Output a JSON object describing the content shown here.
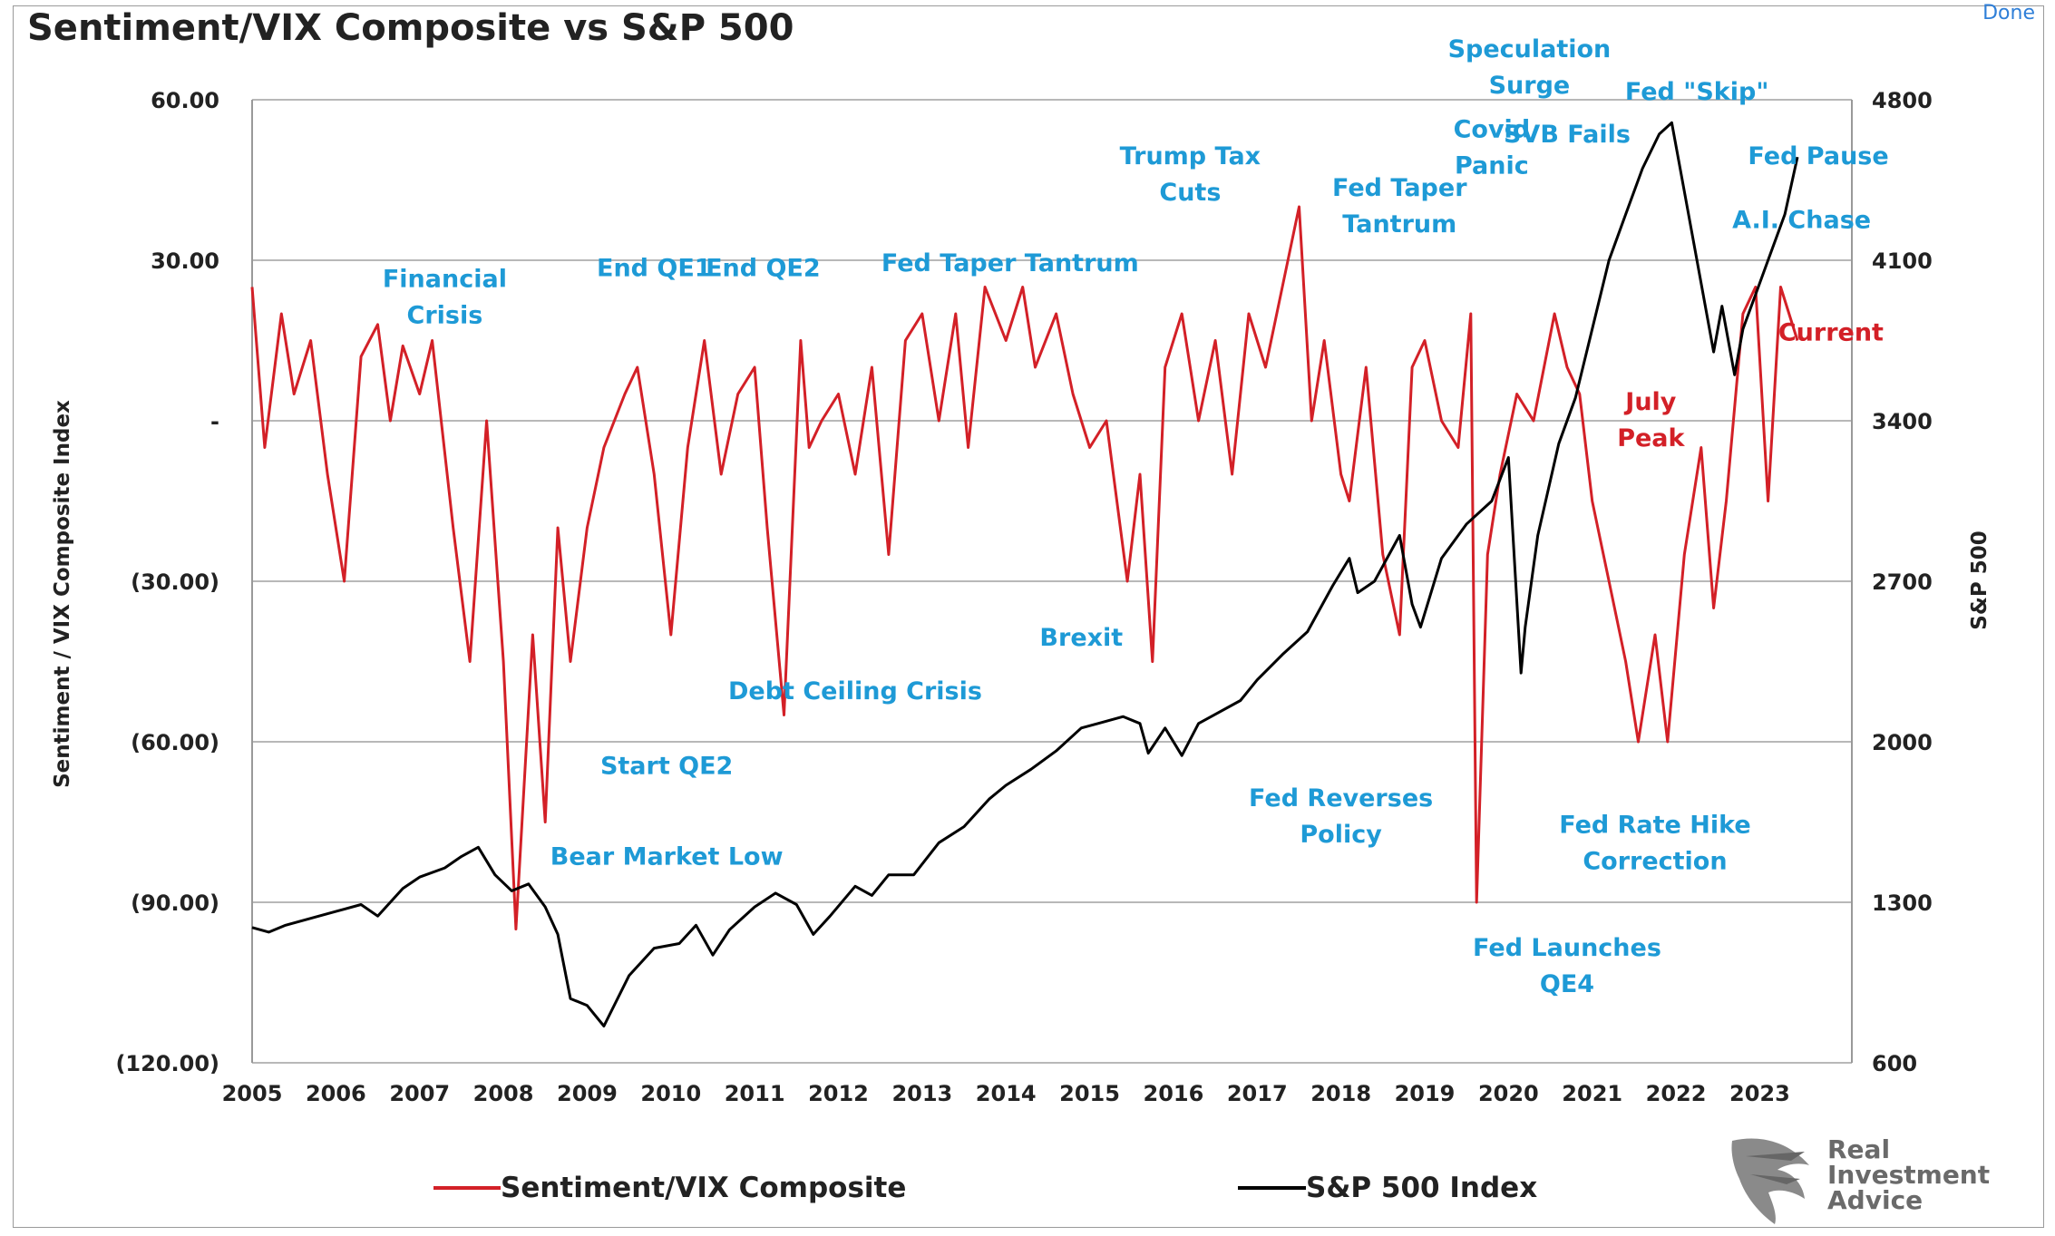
{
  "window": {
    "done_label": "Done"
  },
  "colors": {
    "sentiment": "#d32027",
    "sp500": "#000000",
    "annotation": "#1e9ad6",
    "annotation_red": "#d32027",
    "grid": "#b8b8b8",
    "text": "#222222"
  },
  "chart_data": {
    "type": "line",
    "title": "Sentiment/VIX Composite vs S&P 500",
    "ylabel": "Sentiment / VIX Composite Index",
    "y2label": "S&P 500",
    "xlim": [
      2005,
      2024.1
    ],
    "ylim": [
      -120,
      60
    ],
    "y2lim": [
      600,
      4800
    ],
    "x_tick_labels": [
      "2005",
      "2006",
      "2007",
      "2008",
      "2009",
      "2010",
      "2011",
      "2012",
      "2013",
      "2014",
      "2015",
      "2016",
      "2017",
      "2018",
      "2019",
      "2020",
      "2021",
      "2022",
      "2023"
    ],
    "y_tick_labels": [
      {
        "value": 60,
        "label": "60.00"
      },
      {
        "value": 30,
        "label": "30.00"
      },
      {
        "value": 0,
        "label": "-"
      },
      {
        "value": -30,
        "label": "(30.00)"
      },
      {
        "value": -60,
        "label": "(60.00)"
      },
      {
        "value": -90,
        "label": "(90.00)"
      },
      {
        "value": -120,
        "label": "(120.00)"
      }
    ],
    "y2_tick_labels": [
      {
        "value": 4800,
        "label": "4800"
      },
      {
        "value": 4100,
        "label": "4100"
      },
      {
        "value": 3400,
        "label": "3400"
      },
      {
        "value": 2700,
        "label": "2700"
      },
      {
        "value": 2000,
        "label": "2000"
      },
      {
        "value": 1300,
        "label": "1300"
      },
      {
        "value": 600,
        "label": "600"
      }
    ],
    "grid": true,
    "legend_position": "bottom",
    "series": [
      {
        "name": "Sentiment/VIX Composite",
        "axis": "left",
        "x": [
          2005.0,
          2005.15,
          2005.35,
          2005.5,
          2005.7,
          2005.9,
          2006.1,
          2006.3,
          2006.5,
          2006.65,
          2006.8,
          2007.0,
          2007.15,
          2007.4,
          2007.6,
          2007.8,
          2008.0,
          2008.15,
          2008.35,
          2008.5,
          2008.65,
          2008.8,
          2009.0,
          2009.2,
          2009.45,
          2009.6,
          2009.8,
          2010.0,
          2010.2,
          2010.4,
          2010.6,
          2010.8,
          2011.0,
          2011.15,
          2011.35,
          2011.55,
          2011.65,
          2011.8,
          2012.0,
          2012.2,
          2012.4,
          2012.6,
          2012.8,
          2013.0,
          2013.2,
          2013.4,
          2013.55,
          2013.75,
          2014.0,
          2014.2,
          2014.35,
          2014.6,
          2014.8,
          2015.0,
          2015.2,
          2015.45,
          2015.6,
          2015.75,
          2015.9,
          2016.1,
          2016.3,
          2016.5,
          2016.7,
          2016.9,
          2017.1,
          2017.3,
          2017.5,
          2017.65,
          2017.8,
          2018.0,
          2018.1,
          2018.3,
          2018.5,
          2018.7,
          2018.85,
          2019.0,
          2019.2,
          2019.4,
          2019.55,
          2019.62,
          2019.75,
          2019.9,
          2020.1,
          2020.3,
          2020.55,
          2020.7,
          2020.85,
          2021.0,
          2021.2,
          2021.4,
          2021.55,
          2021.75,
          2021.9,
          2022.1,
          2022.3,
          2022.45,
          2022.6,
          2022.8,
          2022.95,
          2023.1,
          2023.25,
          2023.45
        ],
        "values": [
          25,
          -5,
          20,
          5,
          15,
          -10,
          -30,
          12,
          18,
          0,
          14,
          5,
          15,
          -20,
          -45,
          0,
          -45,
          -95,
          -40,
          -75,
          -20,
          -45,
          -20,
          -5,
          5,
          10,
          -10,
          -40,
          -5,
          15,
          -10,
          5,
          10,
          -20,
          -55,
          15,
          -5,
          0,
          5,
          -10,
          10,
          -25,
          15,
          20,
          0,
          20,
          -5,
          25,
          15,
          25,
          10,
          20,
          5,
          -5,
          0,
          -30,
          -10,
          -45,
          10,
          20,
          0,
          15,
          -10,
          20,
          10,
          25,
          40,
          0,
          15,
          -10,
          -15,
          10,
          -25,
          -40,
          10,
          15,
          0,
          -5,
          20,
          -90,
          -25,
          -10,
          5,
          0,
          20,
          10,
          5,
          -15,
          -30,
          -45,
          -60,
          -40,
          -60,
          -25,
          -5,
          -35,
          -15,
          20,
          25,
          -15,
          25,
          15
        ]
      },
      {
        "name": "S&P 500 Index",
        "axis": "right",
        "x": [
          2005.0,
          2005.2,
          2005.4,
          2005.7,
          2006.0,
          2006.3,
          2006.5,
          2006.8,
          2007.0,
          2007.3,
          2007.5,
          2007.7,
          2007.9,
          2008.1,
          2008.3,
          2008.5,
          2008.65,
          2008.8,
          2009.0,
          2009.2,
          2009.5,
          2009.8,
          2010.1,
          2010.3,
          2010.5,
          2010.7,
          2011.0,
          2011.25,
          2011.5,
          2011.7,
          2011.9,
          2012.2,
          2012.4,
          2012.6,
          2012.9,
          2013.2,
          2013.5,
          2013.8,
          2014.0,
          2014.3,
          2014.6,
          2014.9,
          2015.1,
          2015.4,
          2015.6,
          2015.7,
          2015.9,
          2016.1,
          2016.3,
          2016.5,
          2016.8,
          2017.0,
          2017.3,
          2017.6,
          2017.9,
          2018.1,
          2018.2,
          2018.4,
          2018.7,
          2018.85,
          2018.95,
          2019.2,
          2019.5,
          2019.8,
          2020.0,
          2020.15,
          2020.2,
          2020.35,
          2020.6,
          2020.8,
          2021.0,
          2021.2,
          2021.4,
          2021.6,
          2021.8,
          2021.95,
          2022.1,
          2022.3,
          2022.45,
          2022.55,
          2022.7,
          2022.8,
          2022.95,
          2023.1,
          2023.3,
          2023.45
        ],
        "values": [
          1190,
          1170,
          1200,
          1230,
          1260,
          1290,
          1240,
          1360,
          1410,
          1450,
          1500,
          1540,
          1420,
          1350,
          1380,
          1280,
          1160,
          880,
          850,
          760,
          980,
          1100,
          1120,
          1200,
          1070,
          1180,
          1280,
          1340,
          1290,
          1160,
          1240,
          1370,
          1330,
          1420,
          1420,
          1560,
          1630,
          1750,
          1810,
          1880,
          1960,
          2060,
          2080,
          2110,
          2080,
          1950,
          2060,
          1940,
          2080,
          2120,
          2180,
          2270,
          2380,
          2480,
          2680,
          2800,
          2650,
          2700,
          2900,
          2600,
          2500,
          2800,
          2950,
          3050,
          3240,
          2300,
          2500,
          2900,
          3300,
          3500,
          3800,
          4100,
          4300,
          4500,
          4650,
          4700,
          4400,
          4000,
          3700,
          3900,
          3600,
          3800,
          3950,
          4100,
          4300,
          4550
        ]
      }
    ],
    "annotations": [
      {
        "text": "Financial\nCrisis",
        "color": "blue",
        "x": 2007.3,
        "y": 25
      },
      {
        "text": "End QE1",
        "color": "blue",
        "x": 2009.8,
        "y": 27
      },
      {
        "text": "End QE2",
        "color": "blue",
        "x": 2011.1,
        "y": 27
      },
      {
        "text": "Fed Taper Tantrum",
        "color": "blue",
        "x": 2014.05,
        "y": 28
      },
      {
        "text": "Trump Tax\nCuts",
        "color": "blue",
        "x": 2016.2,
        "y": 48
      },
      {
        "text": "Fed Taper\nTantrum",
        "color": "blue",
        "x": 2018.7,
        "y": 42
      },
      {
        "text": "Covid\nPanic",
        "color": "blue",
        "x": 2019.8,
        "y": 53
      },
      {
        "text": "Speculation\nSurge",
        "color": "blue",
        "x": 2020.25,
        "y": 68
      },
      {
        "text": "Fed \"Skip\"",
        "color": "blue",
        "x": 2022.25,
        "y": 60
      },
      {
        "text": "SVB Fails",
        "color": "blue",
        "x": 2020.7,
        "y": 52
      },
      {
        "text": "Fed Pause",
        "color": "blue",
        "x": 2023.7,
        "y": 48
      },
      {
        "text": "A.I. Chase",
        "color": "blue",
        "x": 2023.5,
        "y": 36
      },
      {
        "text": "Current",
        "color": "red",
        "x": 2023.85,
        "y": 15
      },
      {
        "text": "July\nPeak",
        "color": "red",
        "x": 2021.7,
        "y": 2
      },
      {
        "text": "Brexit",
        "color": "blue",
        "x": 2014.9,
        "y": -42
      },
      {
        "text": "Debt Ceiling Crisis",
        "color": "blue",
        "x": 2012.2,
        "y": -52
      },
      {
        "text": "Start QE2",
        "color": "blue",
        "x": 2009.95,
        "y": -66
      },
      {
        "text": "Bear Market Low",
        "color": "blue",
        "x": 2009.95,
        "y": -83
      },
      {
        "text": "Fed Reverses\nPolicy",
        "color": "blue",
        "x": 2018.0,
        "y": -72
      },
      {
        "text": "Fed Rate Hike\nCorrection",
        "color": "blue",
        "x": 2021.75,
        "y": -77
      },
      {
        "text": "Fed Launches\nQE4",
        "color": "blue",
        "x": 2020.7,
        "y": -100
      }
    ]
  },
  "legend": {
    "sentiment_label": "Sentiment/VIX Composite",
    "sp500_label": "S&P 500 Index"
  },
  "logo": {
    "line1": "Real",
    "line2": "Investment",
    "line3": "Advice"
  }
}
